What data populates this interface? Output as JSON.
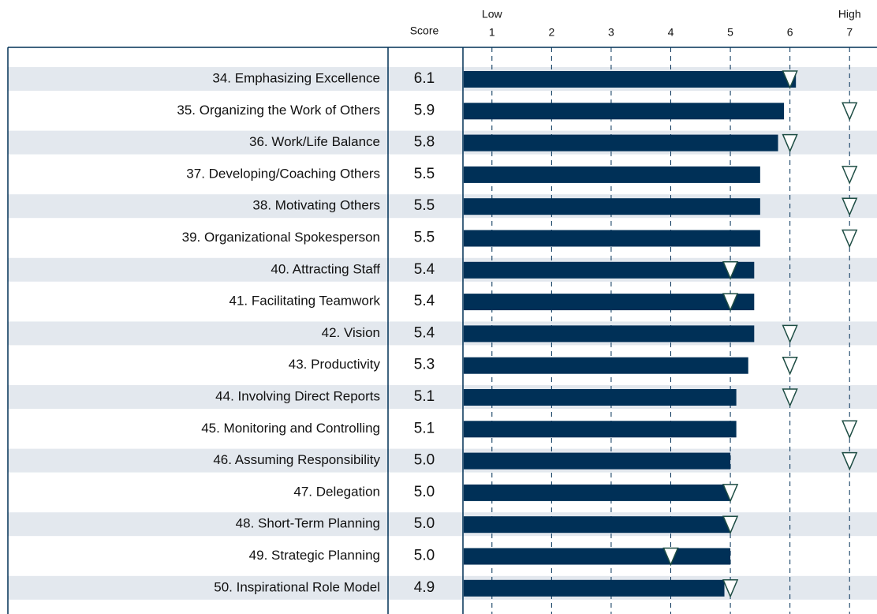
{
  "chart_data": {
    "type": "bar",
    "orientation": "horizontal",
    "score_header": "Score",
    "axis_annotations": [
      {
        "value": 1,
        "label": "Low"
      },
      {
        "value": 7,
        "label": "High"
      }
    ],
    "categories": [
      "34. Emphasizing Excellence",
      "35. Organizing the Work of Others",
      "36. Work/Life Balance",
      "37. Developing/Coaching Others",
      "38. Motivating Others",
      "39. Organizational Spokesperson",
      "40. Attracting Staff",
      "41. Facilitating Teamwork",
      "42. Vision",
      "43. Productivity",
      "44. Involving Direct Reports",
      "45. Monitoring and Controlling",
      "46. Assuming Responsibility",
      "47. Delegation",
      "48. Short-Term Planning",
      "49. Strategic Planning",
      "50. Inspirational Role Model"
    ],
    "series": [
      {
        "name": "Score",
        "color": "#003057",
        "values": [
          6.1,
          5.9,
          5.8,
          5.5,
          5.5,
          5.5,
          5.4,
          5.4,
          5.4,
          5.3,
          5.1,
          5.1,
          5.0,
          5.0,
          5.0,
          5.0,
          4.9
        ],
        "value_labels": [
          "6.1",
          "5.9",
          "5.8",
          "5.5",
          "5.5",
          "5.5",
          "5.4",
          "5.4",
          "5.4",
          "5.3",
          "5.1",
          "5.1",
          "5.0",
          "5.0",
          "5.0",
          "5.0",
          "4.9"
        ]
      },
      {
        "marker": "triangle",
        "color": "#1e4d44",
        "values": [
          6,
          7,
          6,
          7,
          7,
          7,
          5,
          5,
          6,
          6,
          6,
          7,
          7,
          5,
          5,
          4,
          5
        ]
      }
    ],
    "xlim": [
      0.5,
      7.5
    ],
    "xticks": [
      1,
      2,
      3,
      4,
      5,
      6,
      7
    ],
    "row_shading": "#e3e8ee"
  }
}
